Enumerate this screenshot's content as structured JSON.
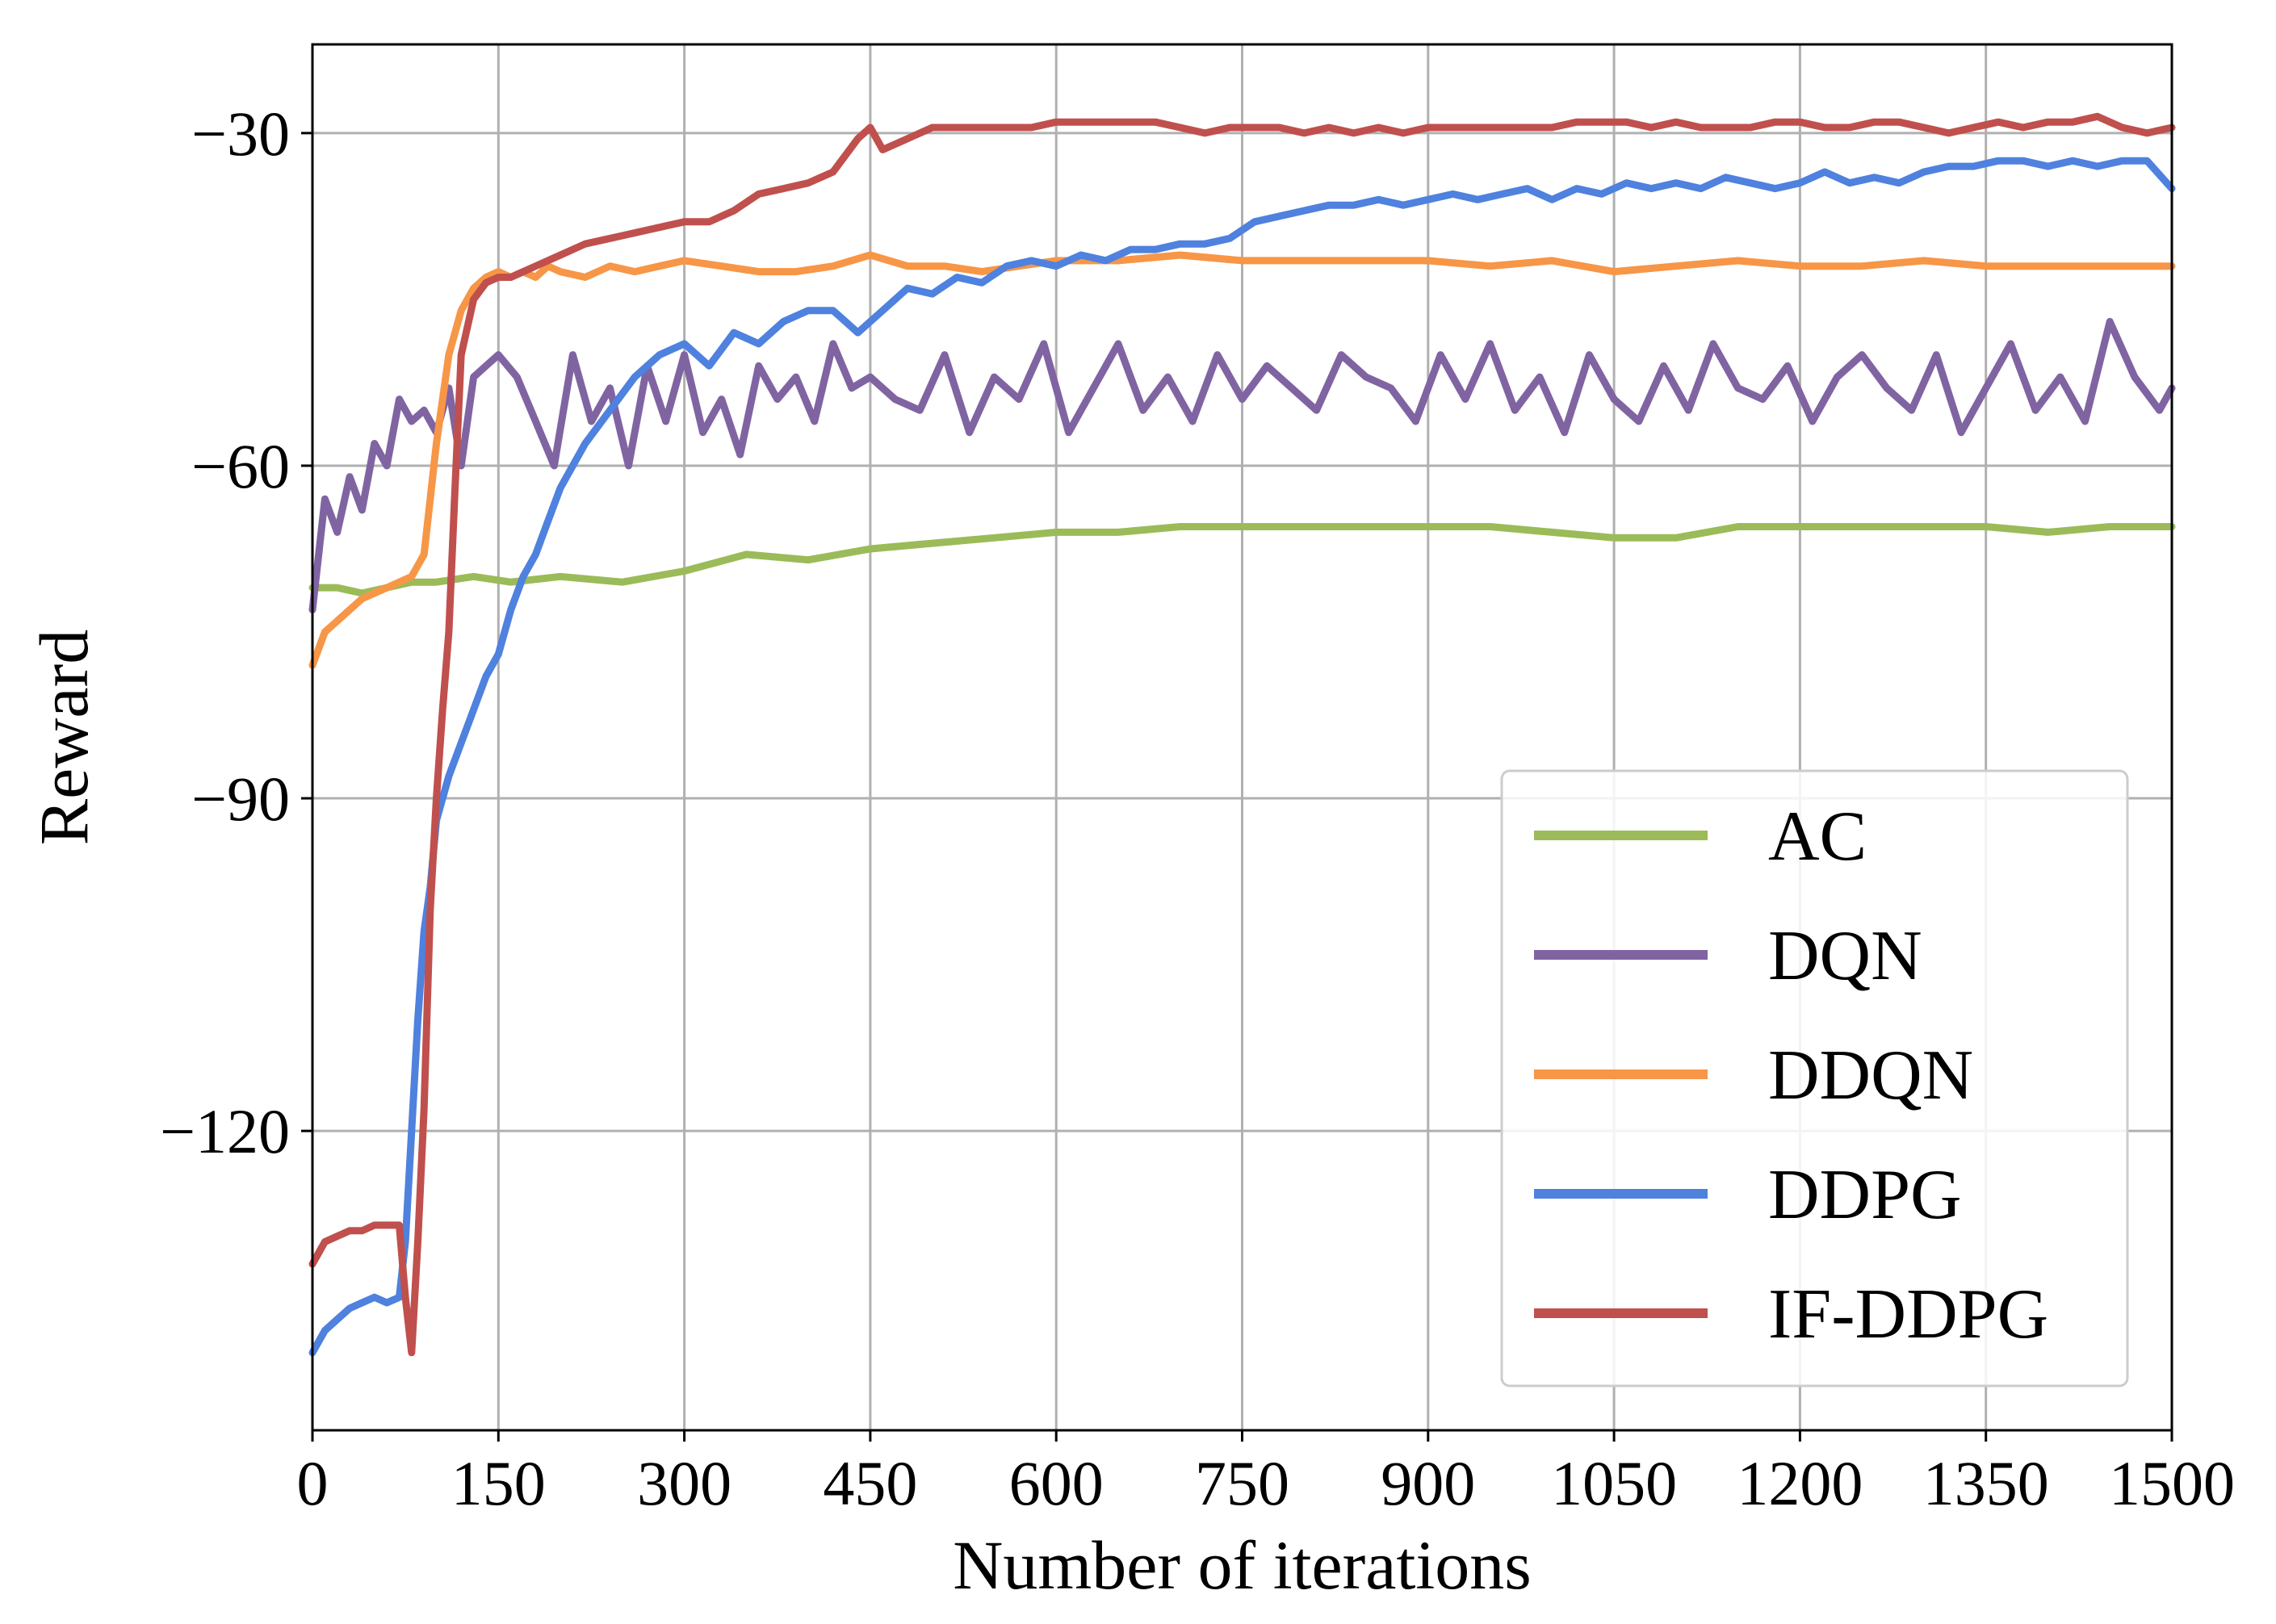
{
  "chart_data": {
    "type": "line",
    "title": "",
    "xlabel": "Number of iterations",
    "ylabel": "Reward",
    "xlim": [
      0,
      1500
    ],
    "ylim": [
      -147,
      -22
    ],
    "xticks": [
      0,
      150,
      300,
      450,
      600,
      750,
      900,
      1050,
      1200,
      1350,
      1500
    ],
    "xtick_labels": [
      "0",
      "150",
      "300",
      "450",
      "600",
      "750",
      "900",
      "1050",
      "1200",
      "1350",
      "1500"
    ],
    "yticks": [
      -30,
      -60,
      -90,
      -120
    ],
    "ytick_labels": [
      "−30",
      "−60",
      "−90",
      "−120"
    ],
    "grid": true,
    "legend_position": "bottom-right",
    "series": [
      {
        "name": "AC",
        "color": "#9bbb59",
        "x": [
          0,
          20,
          40,
          60,
          80,
          100,
          130,
          160,
          200,
          250,
          300,
          350,
          400,
          450,
          500,
          550,
          600,
          650,
          700,
          750,
          800,
          850,
          900,
          950,
          1000,
          1050,
          1100,
          1150,
          1200,
          1250,
          1300,
          1350,
          1400,
          1450,
          1500
        ],
        "y": [
          -71,
          -71,
          -71.5,
          -71,
          -70.5,
          -70.5,
          -70,
          -70.5,
          -70,
          -70.5,
          -69.5,
          -68,
          -68.5,
          -67.5,
          -67,
          -66.5,
          -66,
          -66,
          -65.5,
          -65.5,
          -65.5,
          -65.5,
          -65.5,
          -65.5,
          -66,
          -66.5,
          -66.5,
          -65.5,
          -65.5,
          -65.5,
          -65.5,
          -65.5,
          -66,
          -65.5,
          -65.5
        ]
      },
      {
        "name": "DQN",
        "color": "#8064a2",
        "x": [
          0,
          10,
          20,
          30,
          40,
          50,
          60,
          70,
          80,
          90,
          100,
          110,
          120,
          130,
          140,
          150,
          165,
          180,
          195,
          210,
          225,
          240,
          255,
          270,
          285,
          300,
          315,
          330,
          345,
          360,
          375,
          390,
          405,
          420,
          435,
          450,
          470,
          490,
          510,
          530,
          550,
          570,
          590,
          610,
          630,
          650,
          670,
          690,
          710,
          730,
          750,
          770,
          790,
          810,
          830,
          850,
          870,
          890,
          910,
          930,
          950,
          970,
          990,
          1010,
          1030,
          1050,
          1070,
          1090,
          1110,
          1130,
          1150,
          1170,
          1190,
          1210,
          1230,
          1250,
          1270,
          1290,
          1310,
          1330,
          1350,
          1370,
          1390,
          1410,
          1430,
          1450,
          1470,
          1490,
          1500
        ],
        "y": [
          -73,
          -63,
          -66,
          -61,
          -64,
          -58,
          -60,
          -54,
          -56,
          -55,
          -57,
          -53,
          -60,
          -52,
          -51,
          -50,
          -52,
          -56,
          -60,
          -50,
          -56,
          -53,
          -60,
          -51,
          -56,
          -50,
          -57,
          -54,
          -59,
          -51,
          -54,
          -52,
          -56,
          -49,
          -53,
          -52,
          -54,
          -55,
          -50,
          -57,
          -52,
          -54,
          -49,
          -57,
          -53,
          -49,
          -55,
          -52,
          -56,
          -50,
          -54,
          -51,
          -53,
          -55,
          -50,
          -52,
          -53,
          -56,
          -50,
          -54,
          -49,
          -55,
          -52,
          -57,
          -50,
          -54,
          -56,
          -51,
          -55,
          -49,
          -53,
          -54,
          -51,
          -56,
          -52,
          -50,
          -53,
          -55,
          -50,
          -57,
          -53,
          -49,
          -55,
          -52,
          -56,
          -47,
          -52,
          -55,
          -53
        ]
      },
      {
        "name": "DDQN",
        "color": "#f79646",
        "x": [
          0,
          10,
          20,
          30,
          40,
          50,
          60,
          70,
          80,
          90,
          100,
          110,
          120,
          130,
          140,
          150,
          160,
          170,
          180,
          190,
          200,
          220,
          240,
          260,
          280,
          300,
          330,
          360,
          390,
          420,
          450,
          480,
          510,
          540,
          570,
          600,
          650,
          700,
          750,
          800,
          850,
          900,
          950,
          1000,
          1050,
          1100,
          1150,
          1200,
          1250,
          1300,
          1350,
          1400,
          1450,
          1500
        ],
        "y": [
          -78,
          -75,
          -74,
          -73,
          -72,
          -71.5,
          -71,
          -70.5,
          -70,
          -68,
          -58,
          -50,
          -46,
          -44,
          -43,
          -42.5,
          -43,
          -42.5,
          -43,
          -42,
          -42.5,
          -43,
          -42,
          -42.5,
          -42,
          -41.5,
          -42,
          -42.5,
          -42.5,
          -42,
          -41,
          -42,
          -42,
          -42.5,
          -42,
          -41.5,
          -41.5,
          -41,
          -41.5,
          -41.5,
          -41.5,
          -41.5,
          -42,
          -41.5,
          -42.5,
          -42,
          -41.5,
          -42,
          -42,
          -41.5,
          -42,
          -42,
          -42,
          -42
        ]
      },
      {
        "name": "DDPG",
        "color": "#4f81de",
        "x": [
          0,
          10,
          20,
          30,
          40,
          50,
          60,
          70,
          75,
          80,
          85,
          90,
          95,
          100,
          105,
          110,
          120,
          130,
          140,
          150,
          160,
          170,
          180,
          190,
          200,
          220,
          240,
          260,
          280,
          300,
          320,
          340,
          360,
          380,
          400,
          420,
          440,
          460,
          480,
          500,
          520,
          540,
          560,
          580,
          600,
          620,
          640,
          660,
          680,
          700,
          720,
          740,
          760,
          780,
          800,
          820,
          840,
          860,
          880,
          900,
          920,
          940,
          960,
          980,
          1000,
          1020,
          1040,
          1060,
          1080,
          1100,
          1120,
          1140,
          1160,
          1180,
          1200,
          1220,
          1240,
          1260,
          1280,
          1300,
          1320,
          1340,
          1360,
          1380,
          1400,
          1420,
          1440,
          1460,
          1480,
          1500
        ],
        "y": [
          -140,
          -138,
          -137,
          -136,
          -135.5,
          -135,
          -135.5,
          -135,
          -130,
          -120,
          -110,
          -102,
          -98,
          -92,
          -90,
          -88,
          -85,
          -82,
          -79,
          -77,
          -73,
          -70,
          -68,
          -65,
          -62,
          -58,
          -55,
          -52,
          -50,
          -49,
          -51,
          -48,
          -49,
          -47,
          -46,
          -46,
          -48,
          -46,
          -44,
          -44.5,
          -43,
          -43.5,
          -42,
          -41.5,
          -42,
          -41,
          -41.5,
          -40.5,
          -40.5,
          -40,
          -40,
          -39.5,
          -38,
          -37.5,
          -37,
          -36.5,
          -36.5,
          -36,
          -36.5,
          -36,
          -35.5,
          -36,
          -35.5,
          -35,
          -36,
          -35,
          -35.5,
          -34.5,
          -35,
          -34.5,
          -35,
          -34,
          -34.5,
          -35,
          -34.5,
          -33.5,
          -34.5,
          -34,
          -34.5,
          -33.5,
          -33,
          -33,
          -32.5,
          -32.5,
          -33,
          -32.5,
          -33,
          -32.5,
          -32.5,
          -35
        ]
      },
      {
        "name": "IF-DDPG",
        "color": "#c0504d",
        "x": [
          0,
          10,
          20,
          30,
          40,
          50,
          60,
          70,
          75,
          80,
          85,
          90,
          95,
          100,
          105,
          110,
          115,
          120,
          130,
          140,
          150,
          160,
          170,
          180,
          190,
          200,
          220,
          240,
          260,
          280,
          300,
          320,
          340,
          360,
          380,
          400,
          420,
          440,
          450,
          460,
          480,
          500,
          520,
          540,
          560,
          580,
          600,
          620,
          640,
          660,
          680,
          700,
          720,
          740,
          760,
          780,
          800,
          820,
          840,
          860,
          880,
          900,
          920,
          940,
          960,
          980,
          1000,
          1020,
          1040,
          1060,
          1080,
          1100,
          1120,
          1140,
          1160,
          1180,
          1200,
          1220,
          1240,
          1260,
          1280,
          1300,
          1320,
          1340,
          1360,
          1380,
          1400,
          1420,
          1440,
          1460,
          1480,
          1500
        ],
        "y": [
          -132,
          -130,
          -129.5,
          -129,
          -129,
          -128.5,
          -128.5,
          -128.5,
          -135,
          -140,
          -130,
          -118,
          -100,
          -90,
          -82,
          -75,
          -62,
          -50,
          -45,
          -43.5,
          -43,
          -43,
          -42.5,
          -42,
          -41.5,
          -41,
          -40,
          -39.5,
          -39,
          -38.5,
          -38,
          -38,
          -37,
          -35.5,
          -35,
          -34.5,
          -33.5,
          -30.5,
          -29.5,
          -31.5,
          -30.5,
          -29.5,
          -29.5,
          -29.5,
          -29.5,
          -29.5,
          -29,
          -29,
          -29,
          -29,
          -29,
          -29.5,
          -30,
          -29.5,
          -29.5,
          -29.5,
          -30,
          -29.5,
          -30,
          -29.5,
          -30,
          -29.5,
          -29.5,
          -29.5,
          -29.5,
          -29.5,
          -29.5,
          -29,
          -29,
          -29,
          -29.5,
          -29,
          -29.5,
          -29.5,
          -29.5,
          -29,
          -29,
          -29.5,
          -29.5,
          -29,
          -29,
          -29.5,
          -30,
          -29.5,
          -29,
          -29.5,
          -29,
          -29,
          -28.5,
          -29.5,
          -30,
          -29.5
        ]
      }
    ]
  }
}
